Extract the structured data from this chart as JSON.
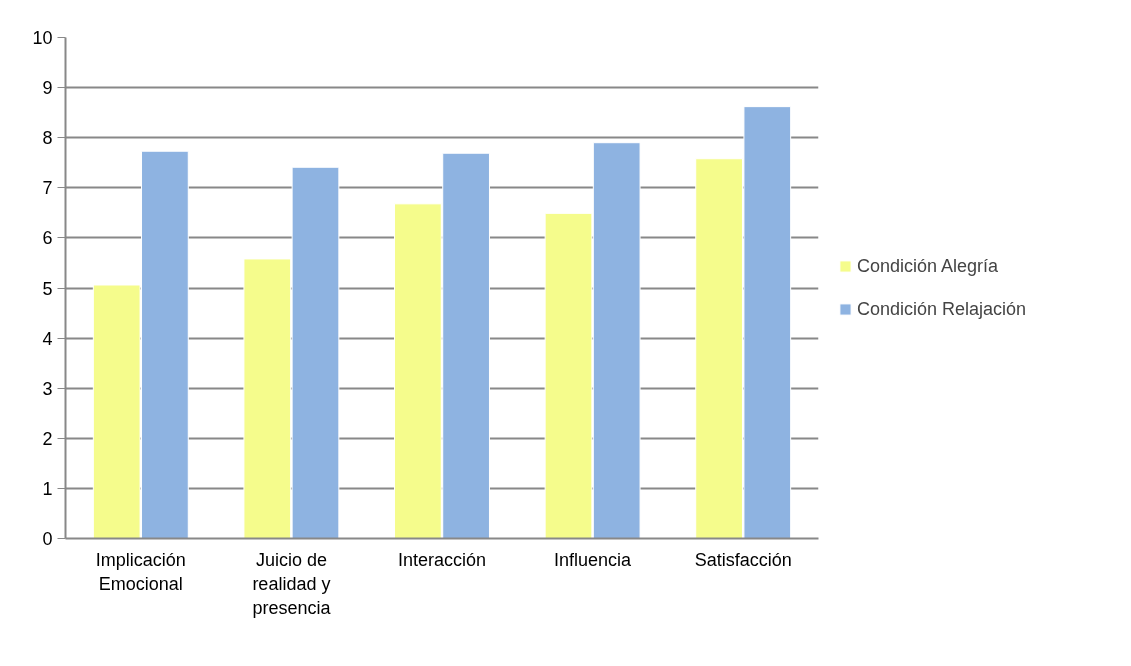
{
  "chart_data": {
    "type": "bar",
    "categories": [
      "Implicación Emocional",
      "Juicio de realidad y presencia",
      "Interacción",
      "Influencia",
      "Satisfacción"
    ],
    "series": [
      {
        "name": "Condición Alegría",
        "color": "#f5fc8c",
        "values": [
          5.06,
          5.58,
          6.68,
          6.49,
          7.58
        ]
      },
      {
        "name": "Condición Relajación",
        "color": "#8eb3e1",
        "values": [
          7.73,
          7.41,
          7.69,
          7.9,
          8.62
        ]
      }
    ],
    "ylim": [
      0,
      10
    ],
    "yticks": [
      0,
      1,
      2,
      3,
      4,
      5,
      6,
      7,
      8,
      9,
      10
    ],
    "grid": "y",
    "legend": "right"
  }
}
